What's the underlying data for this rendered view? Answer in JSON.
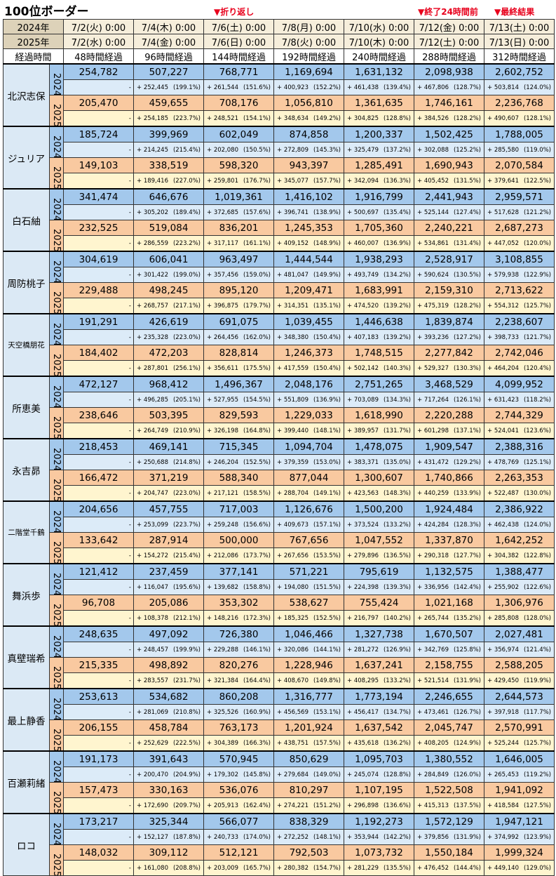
{
  "title": "100位ボーダー",
  "annotations": {
    "fold": "▼折り返し",
    "end24": "▼終了24時間前",
    "final": "▼最終結果"
  },
  "header": {
    "row2024": {
      "label": "2024年",
      "dates": [
        "7/2(火) 0:00",
        "7/4(木) 0:00",
        "7/6(土) 0:00",
        "7/8(月) 0:00",
        "7/10(水) 0:00",
        "7/12(金) 0:00",
        "7/13(土) 0:00"
      ]
    },
    "row2025": {
      "label": "2025年",
      "dates": [
        "7/2(水) 0:00",
        "7/4(金) 0:00",
        "7/6(日) 0:00",
        "7/8(火) 0:00",
        "7/10(木) 0:00",
        "7/12(土) 0:00",
        "7/13(日) 0:00"
      ]
    },
    "elapsed": {
      "label": "経過時間",
      "values": [
        "48時間経過",
        "96時間経過",
        "144時間経過",
        "192時間経過",
        "240時間経過",
        "288時間経過",
        "312時間経過"
      ]
    }
  },
  "year_labels": {
    "y2024": "2024",
    "y2025": "2025"
  },
  "characters": [
    {
      "name": "北沢志保",
      "small": false,
      "y2024": {
        "values": [
          "254,782",
          "507,227",
          "768,771",
          "1,169,694",
          "1,631,132",
          "2,098,938",
          "2,602,752"
        ],
        "first": "-",
        "deltas": [
          [
            "+ 252,445",
            "(199.1%)"
          ],
          [
            "+ 261,544",
            "(151.6%)"
          ],
          [
            "+ 400,923",
            "(152.2%)"
          ],
          [
            "+ 461,438",
            "(139.4%)"
          ],
          [
            "+ 467,806",
            "(128.7%)"
          ],
          [
            "+ 503,814",
            "(124.0%)"
          ]
        ]
      },
      "y2025": {
        "values": [
          "205,470",
          "459,655",
          "708,176",
          "1,056,810",
          "1,361,635",
          "1,746,161",
          "2,236,768"
        ],
        "first": "-",
        "deltas": [
          [
            "+ 254,185",
            "(223.7%)"
          ],
          [
            "+ 248,521",
            "(154.1%)"
          ],
          [
            "+ 348,634",
            "(149.2%)"
          ],
          [
            "+ 304,825",
            "(128.8%)"
          ],
          [
            "+ 384,526",
            "(128.2%)"
          ],
          [
            "+ 490,607",
            "(128.1%)"
          ]
        ]
      }
    },
    {
      "name": "ジュリア",
      "small": false,
      "y2024": {
        "values": [
          "185,724",
          "399,969",
          "602,049",
          "874,858",
          "1,200,337",
          "1,502,425",
          "1,788,005"
        ],
        "first": "-",
        "deltas": [
          [
            "+ 214,245",
            "(215.4%)"
          ],
          [
            "+ 202,080",
            "(150.5%)"
          ],
          [
            "+ 272,809",
            "(145.3%)"
          ],
          [
            "+ 325,479",
            "(137.2%)"
          ],
          [
            "+ 302,088",
            "(125.2%)"
          ],
          [
            "+ 285,580",
            "(119.0%)"
          ]
        ]
      },
      "y2025": {
        "values": [
          "149,103",
          "338,519",
          "598,320",
          "943,397",
          "1,285,491",
          "1,690,943",
          "2,070,584"
        ],
        "first": "-",
        "deltas": [
          [
            "+ 189,416",
            "(227.0%)"
          ],
          [
            "+ 259,801",
            "(176.7%)"
          ],
          [
            "+ 345,077",
            "(157.7%)"
          ],
          [
            "+ 342,094",
            "(136.3%)"
          ],
          [
            "+ 405,452",
            "(131.5%)"
          ],
          [
            "+ 379,641",
            "(122.5%)"
          ]
        ]
      }
    },
    {
      "name": "白石紬",
      "small": false,
      "y2024": {
        "values": [
          "341,474",
          "646,676",
          "1,019,361",
          "1,416,102",
          "1,916,799",
          "2,441,943",
          "2,959,571"
        ],
        "first": "-",
        "deltas": [
          [
            "+ 305,202",
            "(189.4%)"
          ],
          [
            "+ 372,685",
            "(157.6%)"
          ],
          [
            "+ 396,741",
            "(138.9%)"
          ],
          [
            "+ 500,697",
            "(135.4%)"
          ],
          [
            "+ 525,144",
            "(127.4%)"
          ],
          [
            "+ 517,628",
            "(121.2%)"
          ]
        ]
      },
      "y2025": {
        "values": [
          "232,525",
          "519,084",
          "836,201",
          "1,245,353",
          "1,705,360",
          "2,240,221",
          "2,687,273"
        ],
        "first": "-",
        "deltas": [
          [
            "+ 286,559",
            "(223.2%)"
          ],
          [
            "+ 317,117",
            "(161.1%)"
          ],
          [
            "+ 409,152",
            "(148.9%)"
          ],
          [
            "+ 460,007",
            "(136.9%)"
          ],
          [
            "+ 534,861",
            "(131.4%)"
          ],
          [
            "+ 447,052",
            "(120.0%)"
          ]
        ]
      }
    },
    {
      "name": "周防桃子",
      "small": false,
      "y2024": {
        "values": [
          "304,619",
          "606,041",
          "963,497",
          "1,444,544",
          "1,938,293",
          "2,528,917",
          "3,108,855"
        ],
        "first": "-",
        "deltas": [
          [
            "+ 301,422",
            "(199.0%)"
          ],
          [
            "+ 357,456",
            "(159.0%)"
          ],
          [
            "+ 481,047",
            "(149.9%)"
          ],
          [
            "+ 493,749",
            "(134.2%)"
          ],
          [
            "+ 590,624",
            "(130.5%)"
          ],
          [
            "+ 579,938",
            "(122.9%)"
          ]
        ]
      },
      "y2025": {
        "values": [
          "229,488",
          "498,245",
          "895,120",
          "1,209,471",
          "1,683,991",
          "2,159,310",
          "2,713,622"
        ],
        "first": "-",
        "deltas": [
          [
            "+ 268,757",
            "(217.1%)"
          ],
          [
            "+ 396,875",
            "(179.7%)"
          ],
          [
            "+ 314,351",
            "(135.1%)"
          ],
          [
            "+ 474,520",
            "(139.2%)"
          ],
          [
            "+ 475,319",
            "(128.2%)"
          ],
          [
            "+ 554,312",
            "(125.7%)"
          ]
        ]
      }
    },
    {
      "name": "天空橋朋花",
      "small": true,
      "y2024": {
        "values": [
          "191,291",
          "426,619",
          "691,075",
          "1,039,455",
          "1,446,638",
          "1,839,874",
          "2,238,607"
        ],
        "first": "-",
        "deltas": [
          [
            "+ 235,328",
            "(223.0%)"
          ],
          [
            "+ 264,456",
            "(162.0%)"
          ],
          [
            "+ 348,380",
            "(150.4%)"
          ],
          [
            "+ 407,183",
            "(139.2%)"
          ],
          [
            "+ 393,236",
            "(127.2%)"
          ],
          [
            "+ 398,733",
            "(121.7%)"
          ]
        ]
      },
      "y2025": {
        "values": [
          "184,402",
          "472,203",
          "828,814",
          "1,246,373",
          "1,748,515",
          "2,277,842",
          "2,742,046"
        ],
        "first": "-",
        "deltas": [
          [
            "+ 287,801",
            "(256.1%)"
          ],
          [
            "+ 356,611",
            "(175.5%)"
          ],
          [
            "+ 417,559",
            "(150.4%)"
          ],
          [
            "+ 502,142",
            "(140.3%)"
          ],
          [
            "+ 529,327",
            "(130.3%)"
          ],
          [
            "+ 464,204",
            "(120.4%)"
          ]
        ]
      }
    },
    {
      "name": "所恵美",
      "small": false,
      "y2024": {
        "values": [
          "472,127",
          "968,412",
          "1,496,367",
          "2,048,176",
          "2,751,265",
          "3,468,529",
          "4,099,952"
        ],
        "first": "-",
        "deltas": [
          [
            "+ 496,285",
            "(205.1%)"
          ],
          [
            "+ 527,955",
            "(154.5%)"
          ],
          [
            "+ 551,809",
            "(136.9%)"
          ],
          [
            "+ 703,089",
            "(134.3%)"
          ],
          [
            "+ 717,264",
            "(126.1%)"
          ],
          [
            "+ 631,423",
            "(118.2%)"
          ]
        ]
      },
      "y2025": {
        "values": [
          "238,646",
          "503,395",
          "829,593",
          "1,229,033",
          "1,618,990",
          "2,220,288",
          "2,744,329"
        ],
        "first": "-",
        "deltas": [
          [
            "+ 264,749",
            "(210.9%)"
          ],
          [
            "+ 326,198",
            "(164.8%)"
          ],
          [
            "+ 399,440",
            "(148.1%)"
          ],
          [
            "+ 389,957",
            "(131.7%)"
          ],
          [
            "+ 601,298",
            "(137.1%)"
          ],
          [
            "+ 524,041",
            "(123.6%)"
          ]
        ]
      }
    },
    {
      "name": "永吉昴",
      "small": false,
      "y2024": {
        "values": [
          "218,453",
          "469,141",
          "715,345",
          "1,094,704",
          "1,478,075",
          "1,909,547",
          "2,388,316"
        ],
        "first": "-",
        "deltas": [
          [
            "+ 250,688",
            "(214.8%)"
          ],
          [
            "+ 246,204",
            "(152.5%)"
          ],
          [
            "+ 379,359",
            "(153.0%)"
          ],
          [
            "+ 383,371",
            "(135.0%)"
          ],
          [
            "+ 431,472",
            "(129.2%)"
          ],
          [
            "+ 478,769",
            "(125.1%)"
          ]
        ]
      },
      "y2025": {
        "values": [
          "166,472",
          "371,219",
          "588,340",
          "877,044",
          "1,300,607",
          "1,740,866",
          "2,263,353"
        ],
        "first": "-",
        "deltas": [
          [
            "+ 204,747",
            "(223.0%)"
          ],
          [
            "+ 217,121",
            "(158.5%)"
          ],
          [
            "+ 288,704",
            "(149.1%)"
          ],
          [
            "+ 423,563",
            "(148.3%)"
          ],
          [
            "+ 440,259",
            "(133.9%)"
          ],
          [
            "+ 522,487",
            "(130.0%)"
          ]
        ]
      }
    },
    {
      "name": "二階堂千鶴",
      "small": true,
      "y2024": {
        "values": [
          "204,656",
          "457,755",
          "717,003",
          "1,126,676",
          "1,500,200",
          "1,924,484",
          "2,386,922"
        ],
        "first": "-",
        "deltas": [
          [
            "+ 253,099",
            "(223.7%)"
          ],
          [
            "+ 259,248",
            "(156.6%)"
          ],
          [
            "+ 409,673",
            "(157.1%)"
          ],
          [
            "+ 373,524",
            "(133.2%)"
          ],
          [
            "+ 424,284",
            "(128.3%)"
          ],
          [
            "+ 462,438",
            "(124.0%)"
          ]
        ]
      },
      "y2025": {
        "values": [
          "133,642",
          "287,914",
          "500,000",
          "767,656",
          "1,047,552",
          "1,337,870",
          "1,642,252"
        ],
        "first": "-",
        "deltas": [
          [
            "+ 154,272",
            "(215.4%)"
          ],
          [
            "+ 212,086",
            "(173.7%)"
          ],
          [
            "+ 267,656",
            "(153.5%)"
          ],
          [
            "+ 279,896",
            "(136.5%)"
          ],
          [
            "+ 290,318",
            "(127.7%)"
          ],
          [
            "+ 304,382",
            "(122.8%)"
          ]
        ]
      }
    },
    {
      "name": "舞浜歩",
      "small": false,
      "y2024": {
        "values": [
          "121,412",
          "237,459",
          "377,141",
          "571,221",
          "795,619",
          "1,132,575",
          "1,388,477"
        ],
        "first": "-",
        "deltas": [
          [
            "+ 116,047",
            "(195.6%)"
          ],
          [
            "+ 139,682",
            "(158.8%)"
          ],
          [
            "+ 194,080",
            "(151.5%)"
          ],
          [
            "+ 224,398",
            "(139.3%)"
          ],
          [
            "+ 336,956",
            "(142.4%)"
          ],
          [
            "+ 255,902",
            "(122.6%)"
          ]
        ]
      },
      "y2025": {
        "values": [
          "96,708",
          "205,086",
          "353,302",
          "538,627",
          "755,424",
          "1,021,168",
          "1,306,976"
        ],
        "first": "-",
        "deltas": [
          [
            "+ 108,378",
            "(212.1%)"
          ],
          [
            "+ 148,216",
            "(172.3%)"
          ],
          [
            "+ 185,325",
            "(152.5%)"
          ],
          [
            "+ 216,797",
            "(140.2%)"
          ],
          [
            "+ 265,744",
            "(135.2%)"
          ],
          [
            "+ 285,808",
            "(128.0%)"
          ]
        ]
      }
    },
    {
      "name": "真壁瑞希",
      "small": false,
      "y2024": {
        "values": [
          "248,635",
          "497,092",
          "726,380",
          "1,046,466",
          "1,327,738",
          "1,670,507",
          "2,027,481"
        ],
        "first": "-",
        "deltas": [
          [
            "+ 248,457",
            "(199.9%)"
          ],
          [
            "+ 229,288",
            "(146.1%)"
          ],
          [
            "+ 320,086",
            "(144.1%)"
          ],
          [
            "+ 281,272",
            "(126.9%)"
          ],
          [
            "+ 342,769",
            "(125.8%)"
          ],
          [
            "+ 356,974",
            "(121.4%)"
          ]
        ]
      },
      "y2025": {
        "values": [
          "215,335",
          "498,892",
          "820,276",
          "1,228,946",
          "1,637,241",
          "2,158,755",
          "2,588,205"
        ],
        "first": "-",
        "deltas": [
          [
            "+ 283,557",
            "(231.7%)"
          ],
          [
            "+ 321,384",
            "(164.4%)"
          ],
          [
            "+ 408,670",
            "(149.8%)"
          ],
          [
            "+ 408,295",
            "(133.2%)"
          ],
          [
            "+ 521,514",
            "(131.9%)"
          ],
          [
            "+ 429,450",
            "(119.9%)"
          ]
        ]
      }
    },
    {
      "name": "最上静香",
      "small": false,
      "y2024": {
        "values": [
          "253,613",
          "534,682",
          "860,208",
          "1,316,777",
          "1,773,194",
          "2,246,655",
          "2,644,573"
        ],
        "first": "-",
        "deltas": [
          [
            "+ 281,069",
            "(210.8%)"
          ],
          [
            "+ 325,526",
            "(160.9%)"
          ],
          [
            "+ 456,569",
            "(153.1%)"
          ],
          [
            "+ 456,417",
            "(134.7%)"
          ],
          [
            "+ 473,461",
            "(126.7%)"
          ],
          [
            "+ 397,918",
            "(117.7%)"
          ]
        ]
      },
      "y2025": {
        "values": [
          "206,155",
          "458,784",
          "763,173",
          "1,201,924",
          "1,637,542",
          "2,045,747",
          "2,570,991"
        ],
        "first": "-",
        "deltas": [
          [
            "+ 252,629",
            "(222.5%)"
          ],
          [
            "+ 304,389",
            "(166.3%)"
          ],
          [
            "+ 438,751",
            "(157.5%)"
          ],
          [
            "+ 435,618",
            "(136.2%)"
          ],
          [
            "+ 408,205",
            "(124.9%)"
          ],
          [
            "+ 525,244",
            "(125.7%)"
          ]
        ]
      }
    },
    {
      "name": "百瀬莉緒",
      "small": false,
      "y2024": {
        "values": [
          "191,173",
          "391,643",
          "570,945",
          "850,629",
          "1,095,703",
          "1,380,552",
          "1,646,005"
        ],
        "first": "-",
        "deltas": [
          [
            "+ 200,470",
            "(204.9%)"
          ],
          [
            "+ 179,302",
            "(145.8%)"
          ],
          [
            "+ 279,684",
            "(149.0%)"
          ],
          [
            "+ 245,074",
            "(128.8%)"
          ],
          [
            "+ 284,849",
            "(126.0%)"
          ],
          [
            "+ 265,453",
            "(119.2%)"
          ]
        ]
      },
      "y2025": {
        "values": [
          "157,473",
          "330,163",
          "536,076",
          "810,297",
          "1,107,195",
          "1,522,508",
          "1,941,092"
        ],
        "first": "-",
        "deltas": [
          [
            "+ 172,690",
            "(209.7%)"
          ],
          [
            "+ 205,913",
            "(162.4%)"
          ],
          [
            "+ 274,221",
            "(151.2%)"
          ],
          [
            "+ 296,898",
            "(136.6%)"
          ],
          [
            "+ 415,313",
            "(137.5%)"
          ],
          [
            "+ 418,584",
            "(127.5%)"
          ]
        ]
      }
    },
    {
      "name": "ロコ",
      "small": false,
      "y2024": {
        "values": [
          "173,217",
          "325,344",
          "566,077",
          "838,329",
          "1,192,273",
          "1,572,129",
          "1,947,121"
        ],
        "first": "-",
        "deltas": [
          [
            "+ 152,127",
            "(187.8%)"
          ],
          [
            "+ 240,733",
            "(174.0%)"
          ],
          [
            "+ 272,252",
            "(148.1%)"
          ],
          [
            "+ 353,944",
            "(142.2%)"
          ],
          [
            "+ 379,856",
            "(131.9%)"
          ],
          [
            "+ 374,992",
            "(123.9%)"
          ]
        ]
      },
      "y2025": {
        "values": [
          "148,032",
          "309,112",
          "512,121",
          "792,503",
          "1,073,732",
          "1,550,184",
          "1,999,324"
        ],
        "first": "-",
        "deltas": [
          [
            "+ 161,080",
            "(208.8%)"
          ],
          [
            "+ 203,009",
            "(165.7%)"
          ],
          [
            "+ 280,382",
            "(154.7%)"
          ],
          [
            "+ 281,229",
            "(135.5%)"
          ],
          [
            "+ 476,452",
            "(144.4%)"
          ],
          [
            "+ 449,140",
            "(129.0%)"
          ]
        ]
      }
    }
  ]
}
